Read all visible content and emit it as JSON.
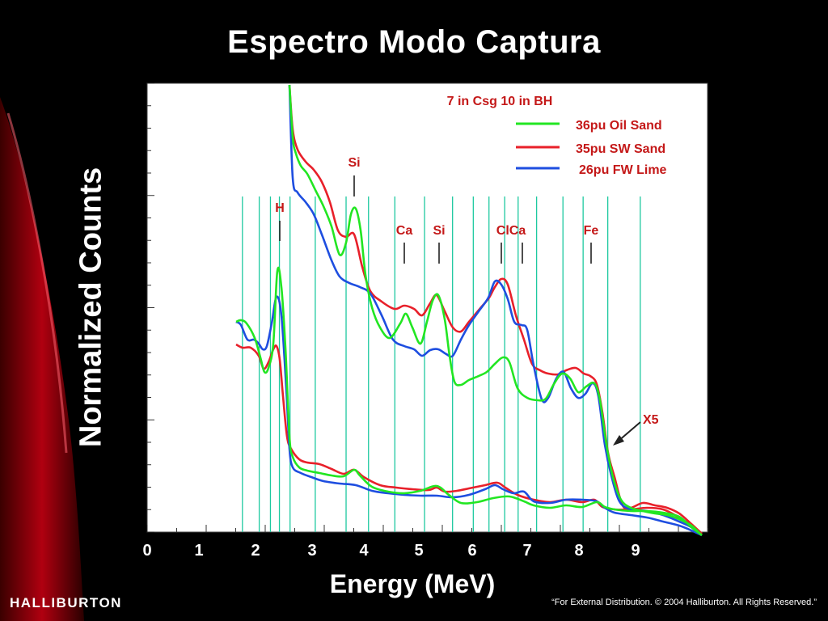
{
  "title": "Espectro Modo Captura",
  "colors": {
    "oil": "#22e622",
    "sw": "#e8202a",
    "fw": "#1e4ee0",
    "lines": "#1ec9a0",
    "annot": "#c41818"
  },
  "chart_data": {
    "type": "line",
    "xlabel": "Energy  (MeV)",
    "ylabel": "Normalized Counts",
    "xticks": [
      "0",
      "1",
      "2",
      "3",
      "4",
      "5",
      "6",
      "7",
      "8",
      "9"
    ],
    "xlim": [
      0,
      10
    ],
    "legend_title": "7 in Csg  10 in BH",
    "legend_position": "top-right",
    "series": [
      {
        "name": "36pu Oil Sand",
        "color_key": "oil"
      },
      {
        "name": "35pu SW Sand",
        "color_key": "sw"
      },
      {
        "name": "26pu FW Lime",
        "color_key": "fw"
      }
    ],
    "scale_annotation": "X5",
    "peak_labels": [
      {
        "label": "H",
        "x": 2.35
      },
      {
        "label": "Si",
        "x": 3.74
      },
      {
        "label": "Ca",
        "x": 4.6
      },
      {
        "label": "Si",
        "x": 5.22
      },
      {
        "label": "ClCa",
        "x": 6.55
      },
      {
        "label": "Fe",
        "x": 7.8
      }
    ],
    "reference_energies": [
      1.7,
      2.0,
      2.2,
      2.36,
      2.55,
      3.0,
      3.55,
      3.95,
      4.42,
      4.95,
      5.45,
      5.82,
      6.1,
      6.38,
      6.62,
      6.95,
      7.42,
      7.78,
      8.22,
      8.8
    ]
  },
  "footer": {
    "logo": "HALLIBURTON",
    "notice": "“For External Distribution. © 2004 Halliburton. All Rights Reserved.”"
  }
}
